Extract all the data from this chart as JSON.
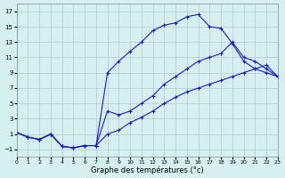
{
  "xlabel": "Graphe des températures (°c)",
  "bg_color": "#d4f0f0",
  "line_color": "#1a1acc",
  "grid_color": "#b0cccc",
  "xlim": [
    0,
    23
  ],
  "ylim": [
    -2,
    18
  ],
  "xticks": [
    0,
    1,
    2,
    3,
    4,
    5,
    6,
    7,
    8,
    9,
    10,
    11,
    12,
    13,
    14,
    15,
    16,
    17,
    18,
    19,
    20,
    21,
    22,
    23
  ],
  "yticks": [
    -1,
    1,
    3,
    5,
    7,
    9,
    11,
    13,
    15,
    17
  ],
  "curve1_x": [
    0,
    1,
    2,
    3,
    4,
    5,
    6,
    7,
    8,
    9,
    10,
    11,
    12,
    13,
    14,
    15,
    16,
    17,
    18,
    19,
    20,
    21,
    22,
    23
  ],
  "curve1_y": [
    1.2,
    0.6,
    0.3,
    1.0,
    -0.6,
    -0.8,
    -0.5,
    -0.5,
    9.0,
    10.5,
    11.8,
    13.0,
    14.5,
    15.2,
    15.5,
    16.3,
    16.6,
    15.0,
    14.8,
    12.8,
    10.5,
    9.5,
    9.0,
    8.5
  ],
  "curve2_x": [
    0,
    1,
    2,
    3,
    4,
    5,
    6,
    7,
    8,
    9,
    10,
    11,
    12,
    13,
    14,
    15,
    16,
    17,
    18,
    19,
    20,
    21,
    22,
    23
  ],
  "curve2_y": [
    1.2,
    0.6,
    0.3,
    1.0,
    -0.6,
    -0.8,
    -0.5,
    -0.5,
    4.0,
    3.5,
    4.0,
    5.0,
    6.0,
    7.5,
    8.5,
    9.5,
    10.5,
    11.0,
    11.5,
    13.0,
    11.0,
    10.5,
    9.5,
    8.5
  ],
  "curve3_x": [
    0,
    1,
    2,
    3,
    4,
    5,
    6,
    7,
    8,
    9,
    10,
    11,
    12,
    13,
    14,
    15,
    16,
    17,
    18,
    19,
    20,
    21,
    22,
    23
  ],
  "curve3_y": [
    1.2,
    0.6,
    0.3,
    1.0,
    -0.6,
    -0.8,
    -0.5,
    -0.5,
    1.0,
    1.5,
    2.5,
    3.2,
    4.0,
    5.0,
    5.8,
    6.5,
    7.0,
    7.5,
    8.0,
    8.5,
    9.0,
    9.5,
    10.0,
    8.5
  ]
}
